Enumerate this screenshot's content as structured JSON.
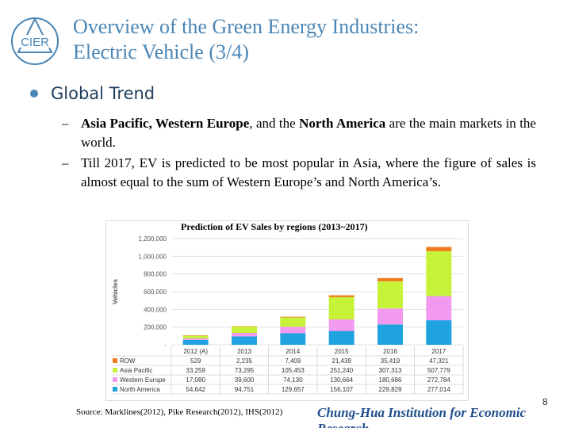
{
  "logo": {
    "text": "CIER"
  },
  "title": {
    "line1": "Overview of the Green Energy Industries:",
    "line2": "Electric Vehicle (3/4)"
  },
  "bullet": {
    "label": "Global Trend"
  },
  "subpoints": [
    {
      "dash": "–",
      "bold1": "Asia Pacific, Western Europe",
      "t1": ", and the ",
      "bold2": "North America",
      "t2": " are the main markets in the world."
    },
    {
      "dash": "–",
      "text": "Till 2017, EV is predicted to be most popular in Asia, where the figure of sales is almost equal to the sum of Western Europe’s and North America’s."
    }
  ],
  "chart_data": {
    "type": "bar",
    "stacked": true,
    "title": "Prediction of EV Sales by regions (2013~2017)",
    "ylabel": "Vehicles",
    "ylim": [
      0,
      1200000
    ],
    "yticks": [
      "-",
      "200,000",
      "400,000",
      "600,000",
      "800,000",
      "1,000,000",
      "1,200,000"
    ],
    "categories": [
      "2012 (A)",
      "2013",
      "2014",
      "2015",
      "2016",
      "2017"
    ],
    "series": [
      {
        "name": "North America",
        "color": "#1fa3e0",
        "values": [
          54642,
          94751,
          129657,
          156107,
          229829,
          277014
        ],
        "labels": [
          "54,642",
          "94,751",
          "129,657",
          "156,107",
          "229,829",
          "277,014"
        ]
      },
      {
        "name": "Western Europe",
        "color": "#f29af0",
        "values": [
          17080,
          39600,
          74130,
          130664,
          180686,
          272784
        ],
        "labels": [
          "17,080",
          "39,600",
          "74,130",
          "130,664",
          "180,686",
          "272,784"
        ]
      },
      {
        "name": "Asia Pacific",
        "color": "#c6f23a",
        "values": [
          33259,
          73295,
          105453,
          251240,
          307313,
          507779
        ],
        "labels": [
          "33,259",
          "73,295",
          "105,453",
          "251,240",
          "307,313",
          "507,779"
        ]
      },
      {
        "name": "ROW",
        "color": "#f07a1e",
        "values": [
          529,
          2235,
          7409,
          21439,
          35419,
          47321
        ],
        "labels": [
          "529",
          "2,235",
          "7,409",
          "21,439",
          "35,419",
          "47,321"
        ]
      }
    ],
    "table_order": [
      "ROW",
      "Asia Pacific",
      "Western Europe",
      "North America"
    ],
    "grid": true,
    "legend": "table-below"
  },
  "footer": {
    "source": "Source: Marklines(2012), Pike Research(2012), IHS(2012)",
    "page": "8",
    "institution": "Chung-Hua Institution for Economic Research"
  }
}
